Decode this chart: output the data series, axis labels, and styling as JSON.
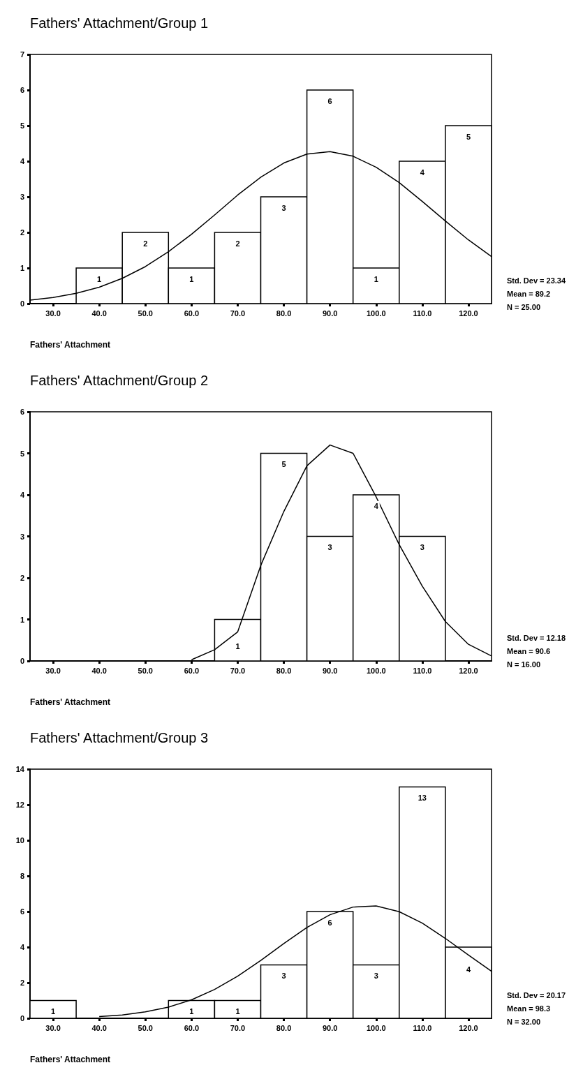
{
  "chart_data": [
    {
      "type": "histogram",
      "title": "Fathers' Attachment/Group 1",
      "xlabel": "Fathers' Attachment",
      "annotations": [
        "Std. Dev = 23.34",
        "Mean = 89.2",
        "N = 25.00"
      ],
      "xlim": [
        25,
        125
      ],
      "xticks": [
        {
          "value": 30,
          "label": "30.0"
        },
        {
          "value": 40,
          "label": "40.0"
        },
        {
          "value": 50,
          "label": "50.0"
        },
        {
          "value": 60,
          "label": "60.0"
        },
        {
          "value": 70,
          "label": "70.0"
        },
        {
          "value": 80,
          "label": "80.0"
        },
        {
          "value": 90,
          "label": "90.0"
        },
        {
          "value": 100,
          "label": "100.0"
        },
        {
          "value": 110,
          "label": "110.0"
        },
        {
          "value": 120,
          "label": "120.0"
        }
      ],
      "ylim": [
        0,
        7
      ],
      "yticks": [
        0,
        1,
        2,
        3,
        4,
        5,
        6,
        7
      ],
      "grid": false,
      "series": [
        {
          "type": "histogram",
          "color": "#ffffff",
          "bins": [
            35,
            45,
            55,
            65,
            75,
            85,
            95,
            105,
            115,
            125
          ],
          "values": [
            1,
            2,
            1,
            2,
            3,
            6,
            1,
            4,
            5
          ],
          "value_labels": [
            "1",
            "2",
            "1",
            "2",
            "3",
            "6",
            "1",
            "4",
            "5"
          ]
        },
        {
          "type": "line",
          "color": "#000000",
          "marker": "none",
          "x": [
            25,
            30,
            35,
            40,
            45,
            50,
            55,
            60,
            65,
            70,
            75,
            80,
            85,
            90,
            95,
            100,
            105,
            110,
            115,
            120,
            125
          ],
          "values": [
            0.1,
            0.17,
            0.29,
            0.46,
            0.71,
            1.04,
            1.46,
            1.95,
            2.49,
            3.05,
            3.55,
            3.95,
            4.2,
            4.27,
            4.14,
            3.83,
            3.4,
            2.87,
            2.32,
            1.79,
            1.32
          ]
        }
      ]
    },
    {
      "type": "histogram",
      "title": "Fathers' Attachment/Group 2",
      "xlabel": "Fathers' Attachment",
      "annotations": [
        "Std. Dev = 12.18",
        "Mean = 90.6",
        "N = 16.00"
      ],
      "xlim": [
        25,
        125
      ],
      "xticks": [
        {
          "value": 30,
          "label": "30.0"
        },
        {
          "value": 40,
          "label": "40.0"
        },
        {
          "value": 50,
          "label": "50.0"
        },
        {
          "value": 60,
          "label": "60.0"
        },
        {
          "value": 70,
          "label": "70.0"
        },
        {
          "value": 80,
          "label": "80.0"
        },
        {
          "value": 90,
          "label": "90.0"
        },
        {
          "value": 100,
          "label": "100.0"
        },
        {
          "value": 110,
          "label": "110.0"
        },
        {
          "value": 120,
          "label": "120.0"
        }
      ],
      "ylim": [
        0,
        6
      ],
      "yticks": [
        0,
        1,
        2,
        3,
        4,
        5,
        6
      ],
      "grid": false,
      "series": [
        {
          "type": "histogram",
          "color": "#ffffff",
          "bins": [
            65,
            75,
            85,
            95,
            105,
            115
          ],
          "values": [
            1,
            5,
            3,
            4,
            3
          ],
          "value_labels": [
            "1",
            "5",
            "3",
            "4",
            "3"
          ]
        },
        {
          "type": "line",
          "color": "#000000",
          "marker": "none",
          "x": [
            60,
            65,
            70,
            75,
            80,
            85,
            90,
            95,
            100,
            105,
            110,
            115,
            120,
            125
          ],
          "values": [
            0.03,
            0.27,
            0.7,
            2.3,
            3.6,
            4.7,
            5.2,
            5.0,
            3.95,
            2.8,
            1.8,
            0.95,
            0.4,
            0.12
          ]
        }
      ]
    },
    {
      "type": "histogram",
      "title": "Fathers' Attachment/Group 3",
      "xlabel": "Fathers' Attachment",
      "annotations": [
        "Std. Dev = 20.17",
        "Mean = 98.3",
        "N = 32.00"
      ],
      "xlim": [
        25,
        125
      ],
      "xticks": [
        {
          "value": 30,
          "label": "30.0"
        },
        {
          "value": 40,
          "label": "40.0"
        },
        {
          "value": 50,
          "label": "50.0"
        },
        {
          "value": 60,
          "label": "60.0"
        },
        {
          "value": 70,
          "label": "70.0"
        },
        {
          "value": 80,
          "label": "80.0"
        },
        {
          "value": 90,
          "label": "90.0"
        },
        {
          "value": 100,
          "label": "100.0"
        },
        {
          "value": 110,
          "label": "110.0"
        },
        {
          "value": 120,
          "label": "120.0"
        }
      ],
      "ylim": [
        0,
        14
      ],
      "yticks": [
        0,
        2,
        4,
        6,
        8,
        10,
        12,
        14
      ],
      "grid": false,
      "series": [
        {
          "type": "histogram",
          "color": "#ffffff",
          "bins": [
            25,
            35,
            45,
            55,
            65,
            75,
            85,
            95,
            105,
            115,
            125
          ],
          "values": [
            1,
            0,
            0,
            1,
            1,
            3,
            6,
            3,
            13,
            4
          ],
          "value_labels": [
            "1",
            null,
            null,
            "1",
            "1",
            "3",
            "6",
            "3",
            "13",
            "4"
          ]
        },
        {
          "type": "line",
          "color": "#000000",
          "marker": "none",
          "x": [
            40,
            45,
            50,
            55,
            60,
            65,
            70,
            75,
            80,
            85,
            90,
            95,
            100,
            105,
            110,
            115,
            120,
            125
          ],
          "values": [
            0.1,
            0.19,
            0.36,
            0.63,
            1.04,
            1.62,
            2.37,
            3.25,
            4.2,
            5.1,
            5.82,
            6.25,
            6.31,
            5.99,
            5.35,
            4.49,
            3.55,
            2.64
          ]
        }
      ]
    }
  ]
}
